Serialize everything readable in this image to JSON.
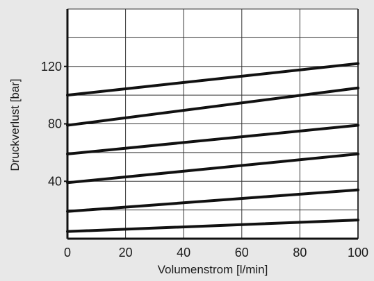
{
  "chart_data": {
    "type": "line",
    "title": "",
    "xlabel": "Volumenstrom [l/min]",
    "ylabel": "Druckverlust [bar]",
    "xlim": [
      0,
      100
    ],
    "ylim": [
      0,
      160
    ],
    "x_ticks": [
      0,
      20,
      40,
      60,
      80,
      100
    ],
    "y_ticks": [
      40,
      80,
      120
    ],
    "grid": true,
    "legend": "none",
    "colors": {
      "background": "#e8e8e8",
      "plot_background": "#ffffff",
      "line": "#111111",
      "grid": "#333333"
    },
    "series": [
      {
        "x": [
          0,
          100
        ],
        "y": [
          100,
          122
        ]
      },
      {
        "x": [
          0,
          100
        ],
        "y": [
          79,
          105
        ]
      },
      {
        "x": [
          0,
          100
        ],
        "y": [
          59,
          79
        ]
      },
      {
        "x": [
          0,
          100
        ],
        "y": [
          39,
          59
        ]
      },
      {
        "x": [
          0,
          100
        ],
        "y": [
          19,
          34
        ]
      },
      {
        "x": [
          0,
          100
        ],
        "y": [
          5,
          13
        ]
      }
    ]
  }
}
